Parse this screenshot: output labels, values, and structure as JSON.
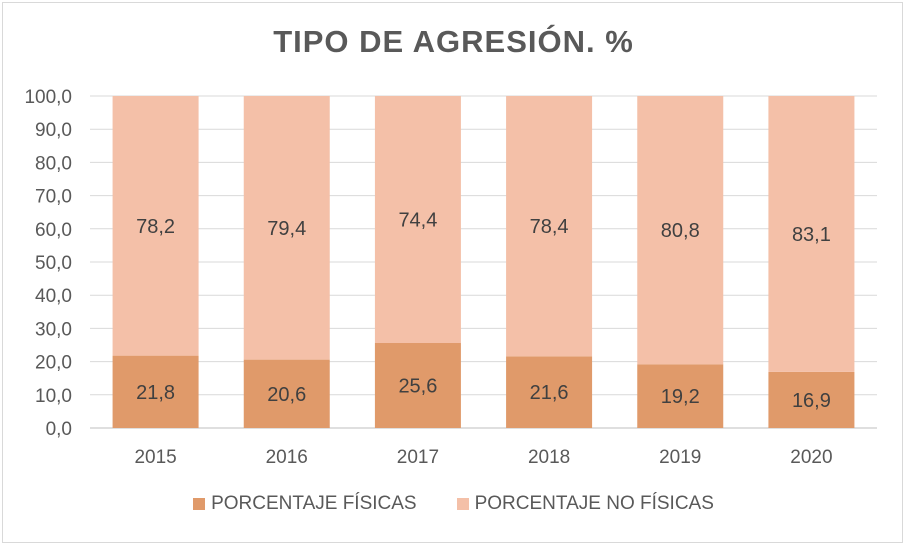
{
  "chart_data": {
    "type": "bar",
    "stacked": true,
    "title": "TIPO DE AGRESIÓN. %",
    "categories": [
      "2015",
      "2016",
      "2017",
      "2018",
      "2019",
      "2020"
    ],
    "series": [
      {
        "name": "PORCENTAJE FÍSICAS",
        "values": [
          21.8,
          20.6,
          25.6,
          21.6,
          19.2,
          16.9
        ],
        "color": "#e09a6a"
      },
      {
        "name": "PORCENTAJE NO FÍSICAS",
        "values": [
          78.2,
          79.4,
          74.4,
          78.4,
          80.8,
          83.1
        ],
        "color": "#f4c0a8"
      }
    ],
    "ylim": [
      0,
      100
    ],
    "yticks": [
      "0,0",
      "10,0",
      "20,0",
      "30,0",
      "40,0",
      "50,0",
      "60,0",
      "70,0",
      "80,0",
      "90,0",
      "100,0"
    ],
    "data_labels": {
      "fisicas": [
        "21,8",
        "20,6",
        "25,6",
        "21,6",
        "19,2",
        "16,9"
      ],
      "no_fisicas": [
        "78,2",
        "79,4",
        "74,4",
        "78,4",
        "80,8",
        "83,1"
      ]
    },
    "grid": true,
    "legend": "bottom"
  }
}
